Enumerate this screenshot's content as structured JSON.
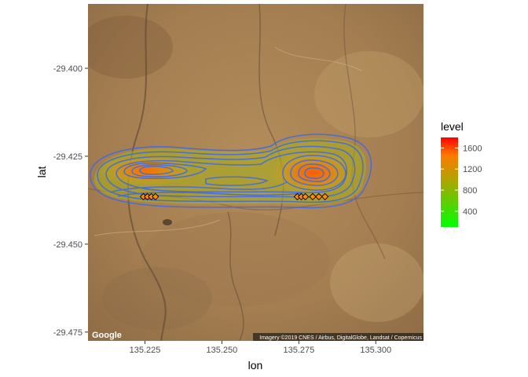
{
  "chart_data": {
    "type": "heatmap",
    "xlabel": "lon",
    "ylabel": "lat",
    "x_ticks": [
      135.225,
      135.25,
      135.275,
      135.3
    ],
    "x_tick_labels": [
      "135.225",
      "135.250",
      "135.275",
      "135.300"
    ],
    "y_ticks": [
      -29.4,
      -29.425,
      -29.45,
      -29.475
    ],
    "y_tick_labels": [
      "-29.400",
      "-29.425",
      "-29.450",
      "-29.475"
    ],
    "xlim": [
      135.2065,
      135.3155
    ],
    "ylim": [
      -29.4775,
      -29.3817
    ],
    "grid": false,
    "legend": {
      "title": "level",
      "position": "right",
      "range": [
        100,
        1800
      ],
      "ticks": [
        400,
        800,
        1200,
        1600
      ],
      "tick_labels": [
        "400",
        "800",
        "1200",
        "1600"
      ],
      "colors": [
        "#00ff00",
        "#ff0000"
      ]
    },
    "density_peaks": [
      {
        "lon": 135.2265,
        "lat": -29.4295,
        "level": 1350
      },
      {
        "lon": 135.2795,
        "lat": -29.4298,
        "level": 1600
      }
    ],
    "contour_color": "#4169e1",
    "points": [
      {
        "lon": 135.2245,
        "lat": -29.4365
      },
      {
        "lon": 135.2258,
        "lat": -29.4365
      },
      {
        "lon": 135.2271,
        "lat": -29.4365
      },
      {
        "lon": 135.2284,
        "lat": -29.4365
      },
      {
        "lon": 135.2745,
        "lat": -29.4365
      },
      {
        "lon": 135.2758,
        "lat": -29.4365
      },
      {
        "lon": 135.2771,
        "lat": -29.4365
      },
      {
        "lon": 135.2795,
        "lat": -29.4365
      },
      {
        "lon": 135.2815,
        "lat": -29.4365
      },
      {
        "lon": 135.2835,
        "lat": -29.4365
      }
    ],
    "point_color": "#ff8c00"
  },
  "map": {
    "basemap_logo": "Google",
    "attribution": "Imagery ©2019 CNES / Airbus, DigitalGlobe, Landsat / Copernicus"
  }
}
